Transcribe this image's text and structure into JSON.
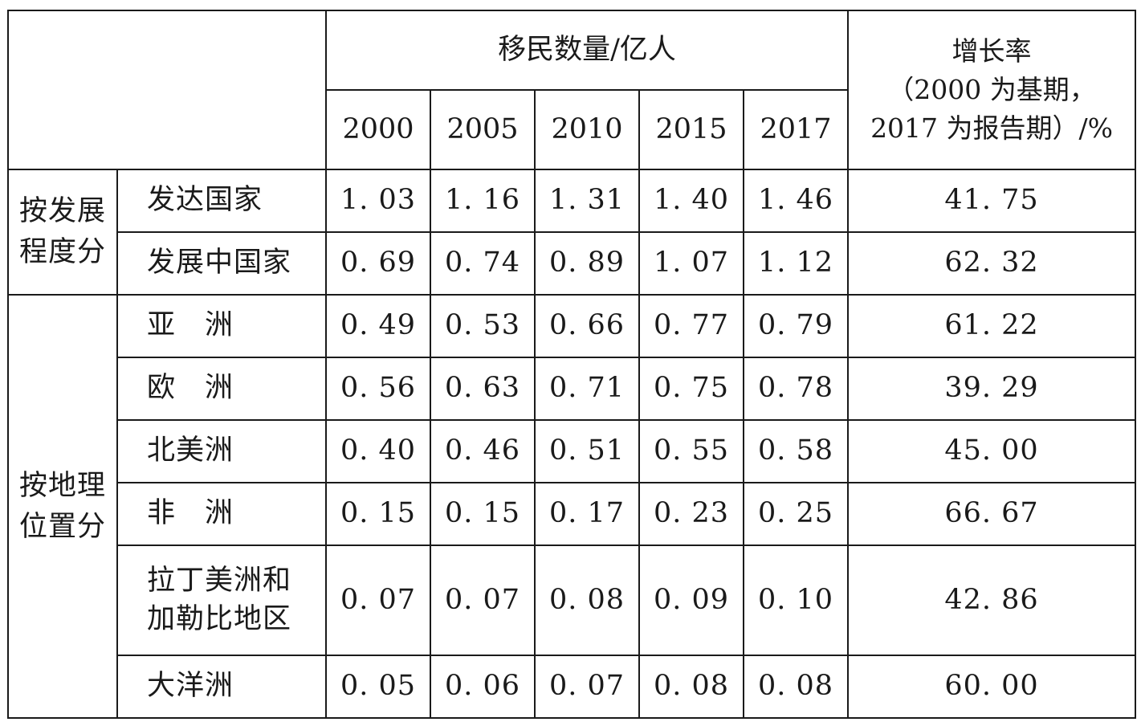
{
  "header": {
    "migrants_label": "移民数量/亿人",
    "growth_label": "增长率\n（2000 为基期，\n2017 为报告期）/%",
    "years": [
      "2000",
      "2005",
      "2010",
      "2015",
      "2017"
    ]
  },
  "groups": [
    {
      "label": "按发展\n程度分"
    },
    {
      "label": "按地理\n位置分"
    }
  ],
  "rows": [
    {
      "label": "发达国家",
      "values": [
        "1. 03",
        "1. 16",
        "1. 31",
        "1. 40",
        "1. 46"
      ],
      "growth": "41. 75"
    },
    {
      "label": "发展中国家",
      "values": [
        "0. 69",
        "0. 74",
        "0. 89",
        "1. 07",
        "1. 12"
      ],
      "growth": "62. 32"
    },
    {
      "label": "亚　洲",
      "values": [
        "0. 49",
        "0. 53",
        "0. 66",
        "0. 77",
        "0. 79"
      ],
      "growth": "61. 22"
    },
    {
      "label": "欧　洲",
      "values": [
        "0. 56",
        "0. 63",
        "0. 71",
        "0. 75",
        "0. 78"
      ],
      "growth": "39. 29"
    },
    {
      "label": "北美洲",
      "values": [
        "0. 40",
        "0. 46",
        "0. 51",
        "0. 55",
        "0. 58"
      ],
      "growth": "45. 00"
    },
    {
      "label": "非　洲",
      "values": [
        "0. 15",
        "0. 15",
        "0. 17",
        "0. 23",
        "0. 25"
      ],
      "growth": "66. 67"
    },
    {
      "label": "拉丁美洲和\n加勒比地区",
      "values": [
        "0. 07",
        "0. 07",
        "0. 08",
        "0. 09",
        "0. 10"
      ],
      "growth": "42. 86"
    },
    {
      "label": "大洋洲",
      "values": [
        "0. 05",
        "0. 06",
        "0. 07",
        "0. 08",
        "0. 08"
      ],
      "growth": "60. 00"
    }
  ]
}
